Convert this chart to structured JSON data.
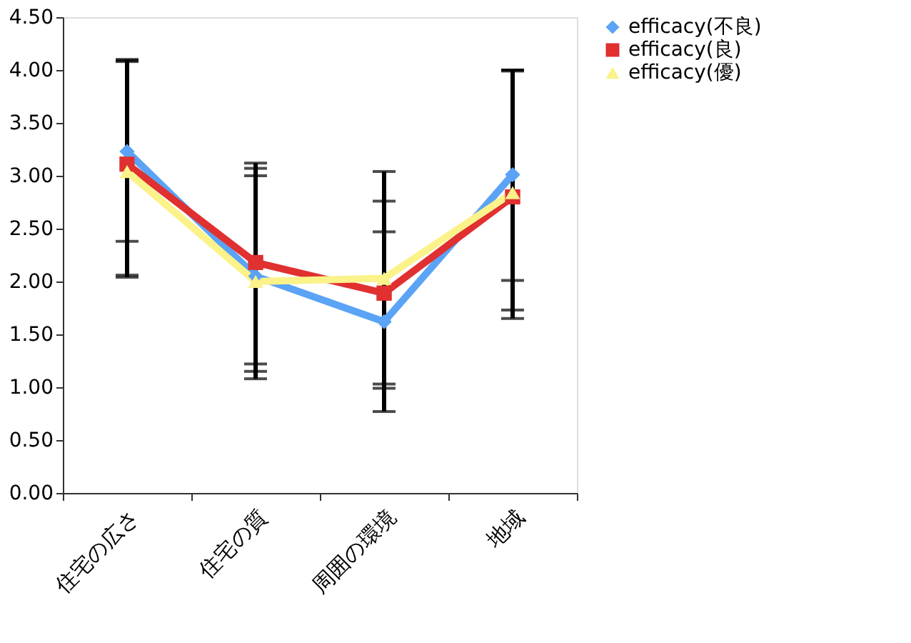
{
  "chart_data": {
    "type": "line",
    "categories": [
      "住宅の広さ",
      "住宅の質",
      "周囲の環境",
      "地域"
    ],
    "series": [
      {
        "name": "efficacy(不良)",
        "color": "#5ba3f5",
        "marker": "diamond",
        "values": [
          3.23,
          2.05,
          1.62,
          3.01
        ],
        "errors": [
          [
            2.38,
            4.1
          ],
          [
            1.08,
            3.0
          ],
          [
            0.77,
            2.47
          ],
          [
            2.01,
            4.0
          ]
        ]
      },
      {
        "name": "efficacy(良)",
        "color": "#e03030",
        "marker": "square",
        "values": [
          3.11,
          2.18,
          1.89,
          2.8
        ],
        "errors": [
          [
            2.06,
            4.08
          ],
          [
            1.22,
            3.12
          ],
          [
            0.99,
            2.76
          ],
          [
            1.65,
            4.0
          ]
        ]
      },
      {
        "name": "efficacy(優)",
        "color": "#fbf28a",
        "marker": "triangle",
        "values": [
          3.04,
          2.0,
          2.03,
          2.84
        ],
        "errors": [
          [
            2.04,
            4.09
          ],
          [
            1.15,
            3.07
          ],
          [
            1.03,
            3.04
          ],
          [
            1.73,
            3.99
          ]
        ]
      }
    ],
    "ylim": [
      0,
      4.5
    ],
    "yticks": [
      {
        "value": 0,
        "label": "0.00"
      },
      {
        "value": 0.5,
        "label": "0.50"
      },
      {
        "value": 1,
        "label": "1.00"
      },
      {
        "value": 1.5,
        "label": "1.50"
      },
      {
        "value": 2,
        "label": "2.00"
      },
      {
        "value": 2.5,
        "label": "2.50"
      },
      {
        "value": 3,
        "label": "3.00"
      },
      {
        "value": 3.5,
        "label": "3.50"
      },
      {
        "value": 4,
        "label": "4.00"
      },
      {
        "value": 4.5,
        "label": "4.50"
      }
    ],
    "grid": false,
    "legend": "right"
  }
}
